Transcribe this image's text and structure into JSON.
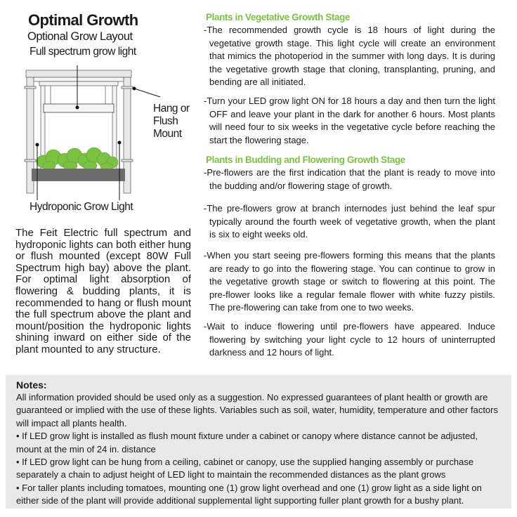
{
  "diagram": {
    "title": "Optimal Growth",
    "subtitle": "Optional Grow Layout",
    "label_top": "Full spectrum grow light",
    "label_side": [
      "Hang or",
      "Flush",
      "Mount"
    ],
    "label_bottom": "Hydroponic Grow Light",
    "colors": {
      "plant": "#7cc242",
      "tray": "#6d6d6d",
      "frame": "#e6e6e6"
    }
  },
  "left_paragraph": [
    "The Feit Electric full spectrum and",
    "hydroponic lights can both either hung",
    "or flush mounted (except 80W Full",
    "Spectrum high bay) above the plant.",
    "For optimal light absorption of",
    "flowering & budding plants, it is",
    "recommended to hang or flush mount",
    "the full spectrum above the plant and",
    "mount/position the hydroponic lights",
    "shining inward on either side of the",
    "plant mounted to any structure."
  ],
  "sections": [
    {
      "heading": "Plants in Vegetative Growth Stage",
      "paragraphs": [
        [
          "-The recommended growth cycle is 18 hours of light during the",
          "vegetative growth stage. This light cycle will create an environment",
          "that mimics the photoperiod in the summer with long days. It is during",
          "the vegetative growth stage that cloning, transplanting, pruning, and",
          "bending are all initiated."
        ],
        [
          "-Turn your LED grow light ON for 18 hours a day and then turn the light",
          "OFF and leave your plant in the dark for another 6 hours. Most plants",
          "will need four to six weeks in the vegetative cycle before reaching the",
          "start the flowering stage."
        ]
      ]
    },
    {
      "heading": "Plants in Budding and Flowering Growth Stage",
      "paragraphs": [
        [
          "-Pre-flowers are the first indication that the plant is ready to move into",
          "the budding and/or flowering stage of growth."
        ],
        [
          "-The pre-flowers grow at branch internodes just  behind the leaf spur",
          "typically around the fourth week of vegetative growth, when the plant",
          "is six  to eight weeks old."
        ],
        [
          "-When you start seeing pre-flowers forming this means that the plants",
          "are ready to go into the flowering stage. You can continue to grow in",
          "the vegetative growth stage or switch to flowering at this point. The",
          "pre-flower looks like a regular female flower with white fuzzy pistils.",
          "The pre-flowering can take from one to two weeks."
        ],
        [
          "-Wait to induce flowering until pre-flowers have appeared. Induce",
          "flowering by switching your light cycle to 12 hours of uninterrupted",
          "darkness and 12 hours of light."
        ]
      ]
    }
  ],
  "notes": {
    "title": "Notes:",
    "lines": [
      "All information provided should be used only as a suggestion. No expressed guarantees of plant health or growth are",
      "guaranteed or implied with the use of these lights. Variables such as soil, water, humidity, temperature and other factors",
      "will impact all plants health.",
      "• If LED grow light is installed as flush mount fixture under a cabinet or canopy where distance cannot be adjusted,",
      "mount at the min of 24 in. distance",
      "• If LED grow light can be hung from a ceiling, cabinet or canopy, use the supplied hanging assembly or purchase",
      "separately a chain to adjust height of  LED light to maintain the recommended distances as the plant grows",
      "• For taller plants including tomatoes, mounting one (1) grow light overhead and one (1) grow light as a side light on",
      "either side of the  plant will provide additional supplemental light supporting fuller plant growth for a bushy plant."
    ]
  }
}
